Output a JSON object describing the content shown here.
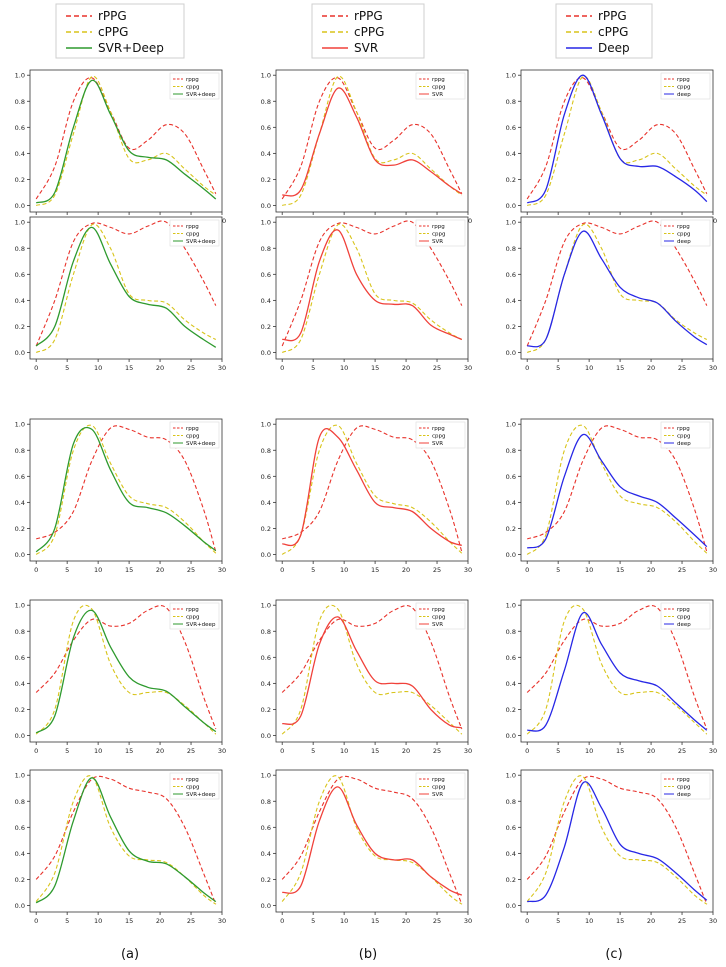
{
  "figure": {
    "column_captions": [
      "(a)",
      "(b)",
      "(c)"
    ],
    "top_legends": [
      [
        "rPPG",
        "cPPG",
        "SVR+Deep"
      ],
      [
        "rPPG",
        "cPPG",
        "SVR"
      ],
      [
        "rPPG",
        "cPPG",
        "Deep"
      ]
    ]
  },
  "colors": {
    "rppg": "#e8322b",
    "cppg": "#d8c41a",
    "svr_deep": "#2e9a2e",
    "svr": "#f0413a",
    "deep": "#2727e6"
  },
  "chart_data": {
    "type": "line",
    "layout": "5x3 grid",
    "xticks": [
      0,
      5,
      10,
      15,
      20,
      25,
      30
    ],
    "yticks": [
      0.0,
      0.2,
      0.4,
      0.6,
      0.8,
      1.0
    ],
    "ytick_labels": [
      "0.0",
      "0.2",
      "0.4",
      "0.6",
      "0.8",
      "1.0"
    ],
    "xlim": [
      -1,
      30
    ],
    "ylim": [
      -0.05,
      1.04
    ],
    "grid": false,
    "legend_placement": "top-right",
    "columns": [
      {
        "caption": "(a)",
        "method_key": "svr_deep",
        "small_legend": [
          "rppg",
          "cppg",
          "SVR+deep"
        ]
      },
      {
        "caption": "(b)",
        "method_key": "svr",
        "small_legend": [
          "rppg",
          "cppg",
          "SVR"
        ]
      },
      {
        "caption": "(c)",
        "method_key": "deep",
        "small_legend": [
          "rppg",
          "cppg",
          "deep"
        ]
      }
    ],
    "rows": [
      {
        "x": [
          0,
          3,
          6,
          9,
          12,
          15,
          18,
          21,
          24,
          27,
          29
        ],
        "rppg": [
          0.05,
          0.3,
          0.8,
          0.98,
          0.72,
          0.44,
          0.5,
          0.62,
          0.55,
          0.28,
          0.09
        ],
        "cppg": [
          0.0,
          0.08,
          0.55,
          0.99,
          0.72,
          0.36,
          0.35,
          0.4,
          0.28,
          0.15,
          0.08
        ],
        "svr_deep": [
          0.02,
          0.1,
          0.6,
          0.96,
          0.7,
          0.42,
          0.37,
          0.35,
          0.24,
          0.13,
          0.05
        ],
        "svr": [
          0.08,
          0.12,
          0.55,
          0.9,
          0.68,
          0.35,
          0.31,
          0.35,
          0.26,
          0.15,
          0.09
        ],
        "deep": [
          0.02,
          0.12,
          0.7,
          1.0,
          0.7,
          0.36,
          0.3,
          0.3,
          0.22,
          0.12,
          0.03
        ]
      },
      {
        "x": [
          0,
          3,
          6,
          9,
          12,
          15,
          18,
          21,
          24,
          27,
          29
        ],
        "rppg": [
          0.05,
          0.4,
          0.85,
          0.99,
          0.96,
          0.91,
          0.97,
          1.0,
          0.8,
          0.55,
          0.36
        ],
        "cppg": [
          0.0,
          0.1,
          0.6,
          0.98,
          0.8,
          0.45,
          0.4,
          0.38,
          0.25,
          0.15,
          0.1
        ],
        "svr_deep": [
          0.05,
          0.2,
          0.7,
          0.96,
          0.68,
          0.43,
          0.37,
          0.34,
          0.2,
          0.1,
          0.04
        ],
        "svr": [
          0.1,
          0.15,
          0.7,
          0.94,
          0.6,
          0.4,
          0.37,
          0.36,
          0.21,
          0.14,
          0.1
        ],
        "deep": [
          0.05,
          0.1,
          0.6,
          0.93,
          0.72,
          0.5,
          0.42,
          0.38,
          0.24,
          0.12,
          0.06
        ]
      },
      {
        "x": [
          0,
          3,
          6,
          9,
          12,
          15,
          18,
          21,
          24,
          27,
          29
        ],
        "rppg": [
          0.12,
          0.17,
          0.33,
          0.72,
          0.97,
          0.96,
          0.9,
          0.88,
          0.72,
          0.35,
          0.02
        ],
        "cppg": [
          0.0,
          0.15,
          0.8,
          0.99,
          0.7,
          0.45,
          0.39,
          0.36,
          0.25,
          0.1,
          0.01
        ],
        "svr_deep": [
          0.02,
          0.2,
          0.85,
          0.96,
          0.65,
          0.4,
          0.36,
          0.32,
          0.22,
          0.1,
          0.03
        ],
        "svr": [
          0.08,
          0.15,
          0.9,
          0.9,
          0.65,
          0.4,
          0.36,
          0.33,
          0.2,
          0.1,
          0.07
        ],
        "deep": [
          0.05,
          0.12,
          0.6,
          0.92,
          0.72,
          0.52,
          0.45,
          0.4,
          0.28,
          0.15,
          0.06
        ]
      },
      {
        "x": [
          0,
          3,
          6,
          9,
          12,
          15,
          18,
          21,
          24,
          27,
          29
        ],
        "rppg": [
          0.33,
          0.48,
          0.73,
          0.89,
          0.84,
          0.86,
          0.96,
          0.98,
          0.72,
          0.3,
          0.05
        ],
        "cppg": [
          0.01,
          0.2,
          0.88,
          0.97,
          0.55,
          0.33,
          0.33,
          0.33,
          0.23,
          0.1,
          0.01
        ],
        "svr_deep": [
          0.02,
          0.15,
          0.75,
          0.96,
          0.68,
          0.45,
          0.37,
          0.34,
          0.22,
          0.1,
          0.03
        ],
        "svr": [
          0.09,
          0.15,
          0.7,
          0.91,
          0.65,
          0.42,
          0.4,
          0.38,
          0.2,
          0.08,
          0.06
        ],
        "deep": [
          0.04,
          0.08,
          0.5,
          0.94,
          0.7,
          0.48,
          0.42,
          0.38,
          0.25,
          0.12,
          0.04
        ]
      },
      {
        "x": [
          0,
          3,
          6,
          9,
          12,
          15,
          18,
          21,
          24,
          27,
          29
        ],
        "rppg": [
          0.2,
          0.38,
          0.72,
          0.97,
          0.97,
          0.9,
          0.87,
          0.82,
          0.6,
          0.25,
          0.01
        ],
        "cppg": [
          0.03,
          0.25,
          0.8,
          0.99,
          0.6,
          0.38,
          0.35,
          0.33,
          0.22,
          0.08,
          0.01
        ],
        "svr_deep": [
          0.02,
          0.15,
          0.65,
          0.98,
          0.68,
          0.42,
          0.34,
          0.32,
          0.22,
          0.1,
          0.03
        ],
        "svr": [
          0.1,
          0.15,
          0.65,
          0.91,
          0.62,
          0.4,
          0.35,
          0.35,
          0.22,
          0.12,
          0.08
        ],
        "deep": [
          0.03,
          0.08,
          0.45,
          0.94,
          0.75,
          0.47,
          0.4,
          0.36,
          0.25,
          0.12,
          0.04
        ]
      }
    ]
  }
}
